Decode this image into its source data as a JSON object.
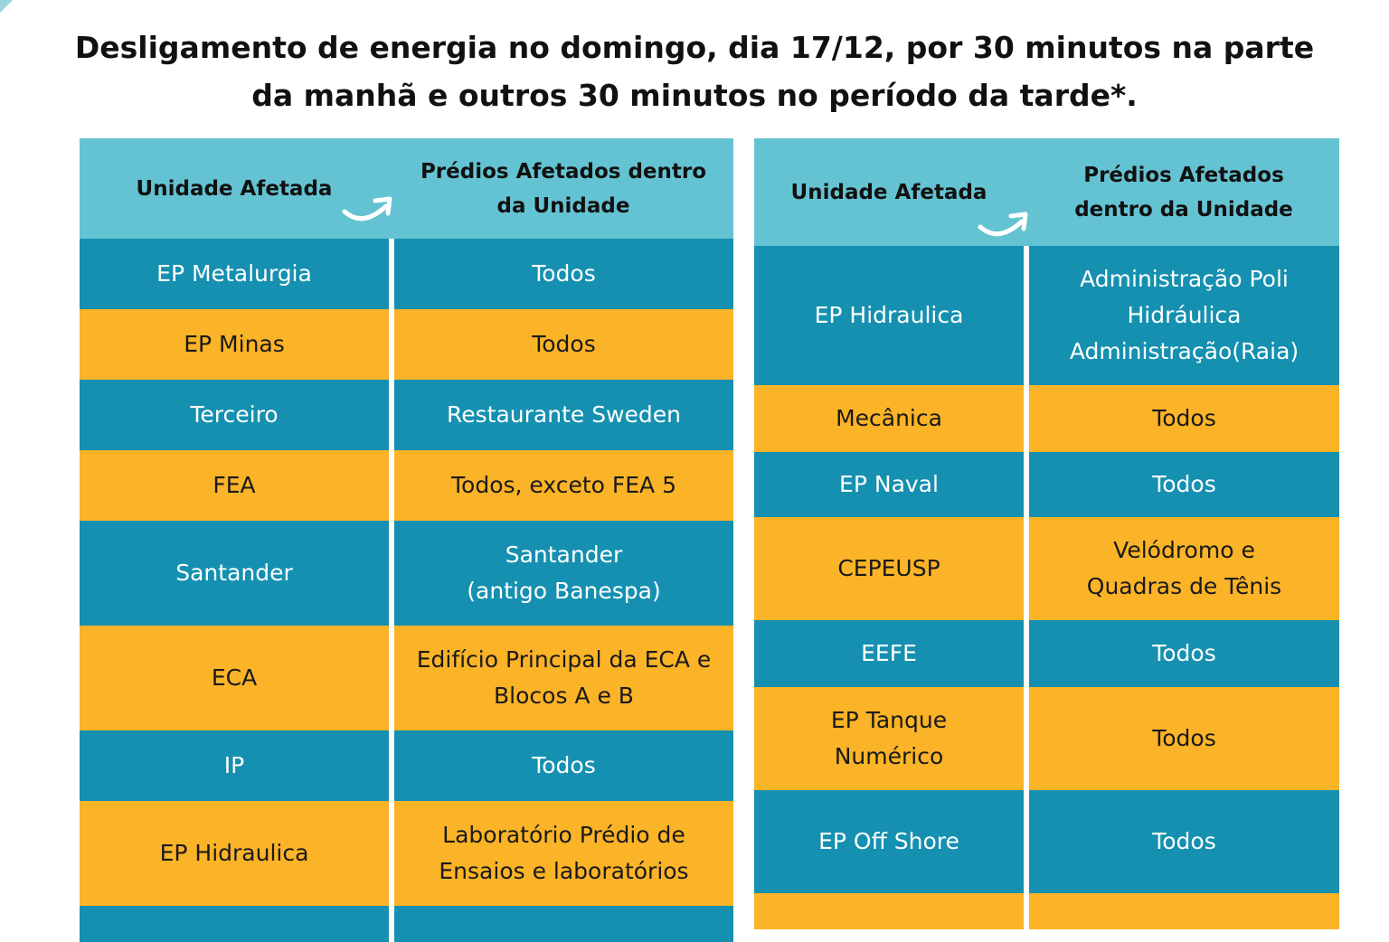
{
  "title": {
    "line1": "Desligamento de energia no domingo, dia 17/12, por 30 minutos na parte",
    "line2": "da manhã e outros 30 minutos no período da tarde*."
  },
  "colors": {
    "header": "#64c3d3",
    "teal": "#1590b0",
    "amber": "#fbb327"
  },
  "icons": {
    "header_arrow": "curved-arrow-icon"
  },
  "tables": [
    {
      "header": {
        "col1": "Unidade Afetada",
        "col2_line1": "Prédios Afetados dentro",
        "col2_line2": "da Unidade"
      },
      "rows": [
        {
          "unit": [
            "EP Metalurgia"
          ],
          "buildings": [
            "Todos"
          ],
          "color": "teal"
        },
        {
          "unit": [
            "EP Minas"
          ],
          "buildings": [
            "Todos"
          ],
          "color": "amber"
        },
        {
          "unit": [
            "Terceiro"
          ],
          "buildings": [
            "Restaurante Sweden"
          ],
          "color": "teal"
        },
        {
          "unit": [
            "FEA"
          ],
          "buildings": [
            "Todos, exceto FEA 5"
          ],
          "color": "amber"
        },
        {
          "unit": [
            "Santander"
          ],
          "buildings": [
            "Santander",
            "(antigo Banespa)"
          ],
          "color": "teal"
        },
        {
          "unit": [
            "ECA"
          ],
          "buildings": [
            "Edifício Principal da ECA e",
            "Blocos A e B"
          ],
          "color": "amber"
        },
        {
          "unit": [
            "IP"
          ],
          "buildings": [
            "Todos"
          ],
          "color": "teal"
        },
        {
          "unit": [
            "EP Hidraulica"
          ],
          "buildings": [
            "Laboratório Prédio de",
            "Ensaios e laboratórios"
          ],
          "color": "amber"
        },
        {
          "unit": [],
          "buildings": [],
          "color": "teal"
        }
      ]
    },
    {
      "header": {
        "col1": "Unidade Afetada",
        "col2_line1": "Prédios Afetados",
        "col2_line2": "dentro da Unidade"
      },
      "rows": [
        {
          "unit": [
            "EP Hidraulica"
          ],
          "buildings": [
            "Administração Poli",
            "Hidráulica",
            "Administração(Raia)"
          ],
          "color": "teal"
        },
        {
          "unit": [
            "Mecânica"
          ],
          "buildings": [
            "Todos"
          ],
          "color": "amber"
        },
        {
          "unit": [
            "EP Naval"
          ],
          "buildings": [
            "Todos"
          ],
          "color": "teal"
        },
        {
          "unit": [
            "CEPEUSP"
          ],
          "buildings": [
            "Velódromo e",
            "Quadras de Tênis"
          ],
          "color": "amber"
        },
        {
          "unit": [
            "EEFE"
          ],
          "buildings": [
            "Todos"
          ],
          "color": "teal"
        },
        {
          "unit": [
            "EP Tanque",
            "Numérico"
          ],
          "buildings": [
            "Todos"
          ],
          "color": "amber"
        },
        {
          "unit": [
            "EP Off Shore"
          ],
          "buildings": [
            "Todos"
          ],
          "color": "teal"
        },
        {
          "unit": [],
          "buildings": [],
          "color": "amber"
        }
      ]
    }
  ]
}
